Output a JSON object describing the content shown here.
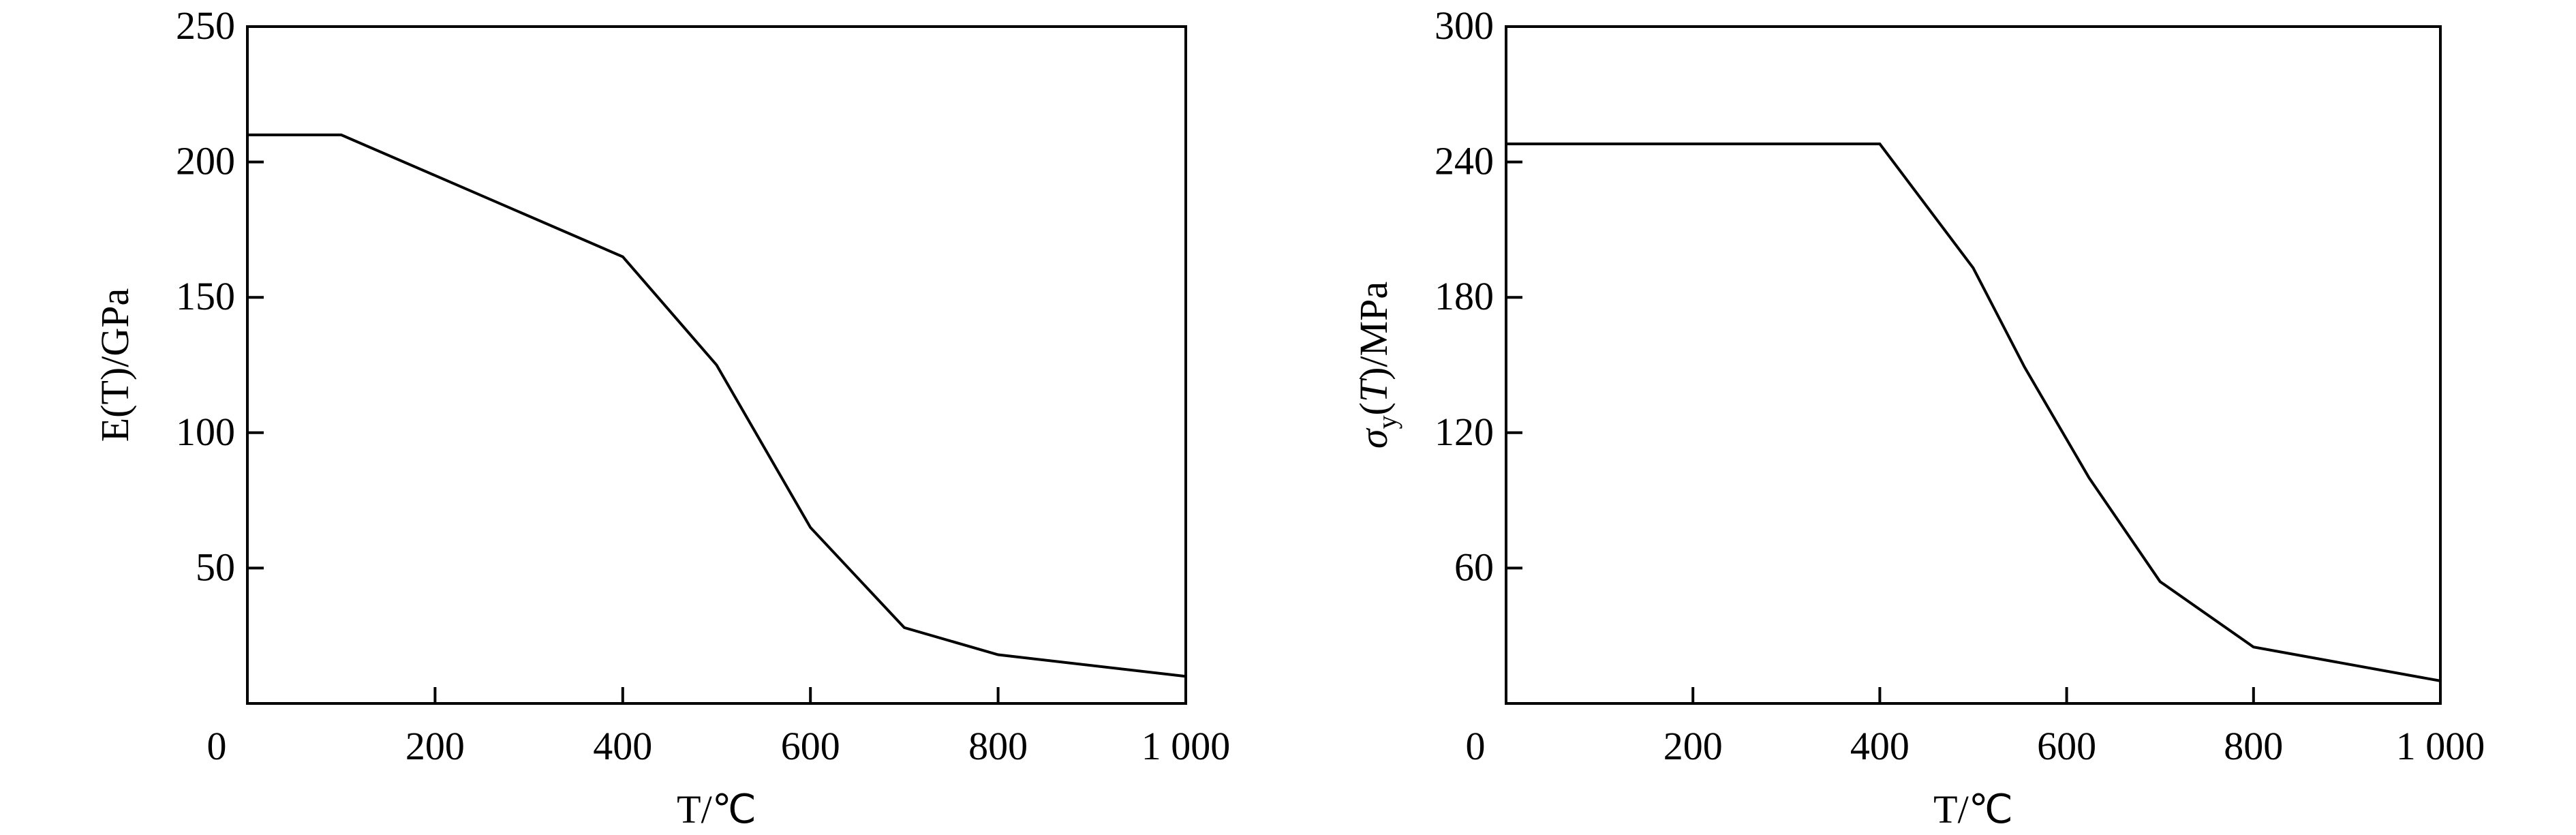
{
  "chart_data": [
    {
      "type": "line",
      "xlabel": "T/℃",
      "xlabel_parts": {
        "italic": "T",
        "rest": "/℃"
      },
      "ylabel": "E(T)/GPa",
      "ylabel_parts": {
        "pre": "E",
        "mid": "(",
        "italic": "T",
        "rest": ")/GPa"
      },
      "xlim": [
        0,
        1000
      ],
      "ylim": [
        0,
        250
      ],
      "xticks": [
        0,
        200,
        400,
        600,
        800,
        1000
      ],
      "xtick_labels": [
        "0",
        "200",
        "400",
        "600",
        "800",
        "1 000"
      ],
      "yticks": [
        50,
        100,
        150,
        200,
        250
      ],
      "ytick_labels": [
        "50",
        "100",
        "150",
        "200",
        "250"
      ],
      "grid": false,
      "color": "#000000",
      "x": [
        0,
        100,
        400,
        500,
        600,
        700,
        800,
        1000
      ],
      "y": [
        210,
        210,
        165,
        125,
        65,
        28,
        18,
        10
      ]
    },
    {
      "type": "line",
      "xlabel": "T/℃",
      "xlabel_parts": {
        "italic": "T",
        "rest": "/℃"
      },
      "ylabel": "σy(T)/MPa",
      "ylabel_parts": {
        "pre": "σ",
        "sub": "y",
        "mid": "(",
        "italic": "T",
        "rest": ")/MPa"
      },
      "xlim": [
        0,
        1000
      ],
      "ylim": [
        0,
        300
      ],
      "xticks": [
        0,
        200,
        400,
        600,
        800,
        1000
      ],
      "xtick_labels": [
        "0",
        "200",
        "400",
        "600",
        "800",
        "1 000"
      ],
      "yticks": [
        60,
        120,
        180,
        240,
        300
      ],
      "ytick_labels": [
        "60",
        "120",
        "180",
        "240",
        "300"
      ],
      "grid": false,
      "color": "#000000",
      "x": [
        0,
        400,
        500,
        555,
        624,
        700,
        800,
        1000
      ],
      "y": [
        248,
        248,
        193,
        149,
        100,
        54,
        25,
        10
      ]
    }
  ]
}
